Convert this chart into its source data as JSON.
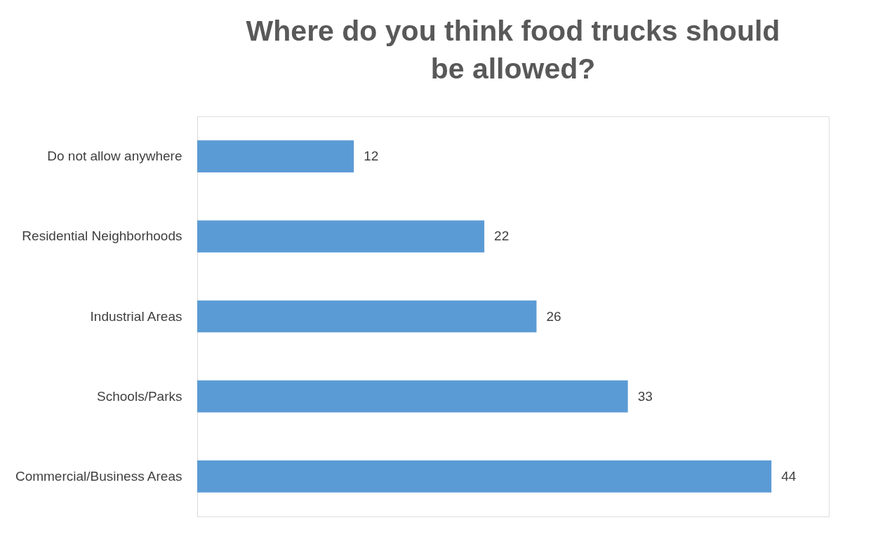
{
  "chart_data": {
    "type": "bar",
    "orientation": "horizontal",
    "title": "Where do you think food trucks should be allowed?",
    "categories": [
      "Do not allow anywhere",
      "Residential Neighborhoods",
      "Industrial Areas",
      "Schools/Parks",
      "Commercial/Business Areas"
    ],
    "values": [
      12,
      22,
      26,
      33,
      44
    ],
    "color": "#5b9bd5",
    "data_labels": true
  }
}
